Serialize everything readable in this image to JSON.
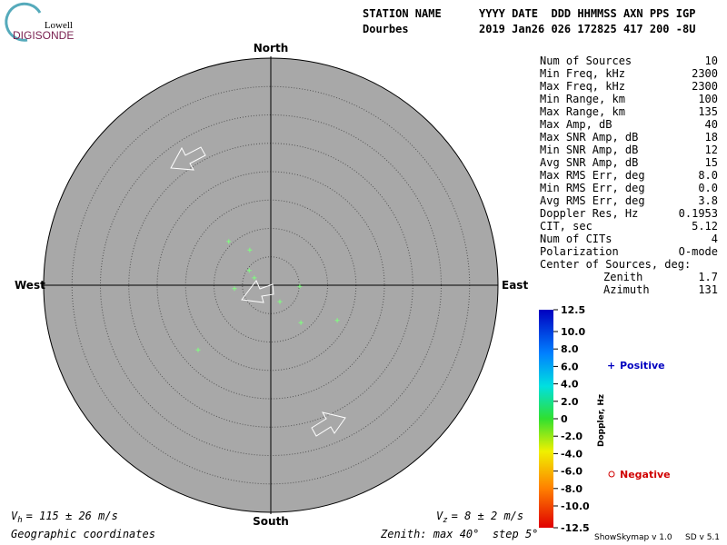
{
  "logo": {
    "line1": "Lowell",
    "line2": "DIGISONDE"
  },
  "header": {
    "station_label": "STATION NAME",
    "fields_label": "YYYY DATE  DDD HHMMSS AXN PPS IGP",
    "station": "Dourbes",
    "fields": "2019 Jan26 026 172825 417 200 -8U"
  },
  "stats": [
    [
      "Num of Sources",
      "10"
    ],
    [
      "Min Freq, kHz",
      "2300"
    ],
    [
      "Max Freq, kHz",
      "2300"
    ],
    [
      "Min Range, km",
      "100"
    ],
    [
      "Max Range, km",
      "135"
    ],
    [
      "Max Amp, dB",
      "40"
    ],
    [
      "Max SNR Amp, dB",
      "18"
    ],
    [
      "Min SNR Amp, dB",
      "12"
    ],
    [
      "Avg SNR Amp, dB",
      "15"
    ],
    [
      "Max RMS Err, deg",
      "8.0"
    ],
    [
      "Min RMS Err, deg",
      "0.0"
    ],
    [
      "Avg RMS Err, deg",
      "3.8"
    ],
    [
      "Doppler Res, Hz",
      "0.1953"
    ],
    [
      "CIT, sec",
      "5.12"
    ],
    [
      "Num of CITs",
      "4"
    ],
    [
      "Polarization",
      "O-mode"
    ]
  ],
  "center": {
    "title": "Center of Sources, deg:",
    "rows": [
      [
        "Zenith",
        "1.7"
      ],
      [
        "Azimuth",
        "131"
      ]
    ]
  },
  "compass": {
    "north": "North",
    "south": "South",
    "east": "East",
    "west": "West"
  },
  "sky": {
    "max_zenith": 40,
    "ring_step": 5,
    "sources": [
      {
        "east": -7.4,
        "north": 7.7
      },
      {
        "east": -3.7,
        "north": 6.2
      },
      {
        "east": -3.8,
        "north": 2.6
      },
      {
        "east": -2.9,
        "north": 1.3
      },
      {
        "east": -6.4,
        "north": -0.6
      },
      {
        "east": 1.6,
        "north": -2.9
      },
      {
        "east": 5.1,
        "north": -0.2
      },
      {
        "east": 5.3,
        "north": -6.6
      },
      {
        "east": 11.7,
        "north": -6.2
      },
      {
        "east": -12.8,
        "north": -11.4
      }
    ]
  },
  "colorbar": {
    "title": "Doppler, Hz",
    "lim": [
      -12.5,
      12.5
    ],
    "ticks": [
      12.5,
      {
        "value": 10,
        "label": "10.0"
      },
      {
        "value": 8,
        "label": "8.0"
      },
      {
        "value": 6,
        "label": "6.0"
      },
      {
        "value": 4,
        "label": "4.0"
      },
      {
        "value": 2,
        "label": "2.0"
      },
      0,
      {
        "value": -2,
        "label": "-2.0"
      },
      {
        "value": -4,
        "label": "-4.0"
      },
      {
        "value": -6,
        "label": "-6.0"
      },
      {
        "value": -8,
        "label": "-8.0"
      },
      {
        "value": -10,
        "label": "-10.0"
      },
      -12.5
    ]
  },
  "legend": {
    "positive": "Positive",
    "negative": "Negative"
  },
  "footer": {
    "vh_sub": "h",
    "vh": "= 115 ± 26 m/s",
    "vz_sub": "z",
    "vz": "= 8 ± 2 m/s",
    "coords": "Geographic coordinates",
    "zenith": "Zenith: max 40°  step 5°",
    "version": "ShowSkymap v 1.0",
    "sd": "SD v 5.1"
  }
}
